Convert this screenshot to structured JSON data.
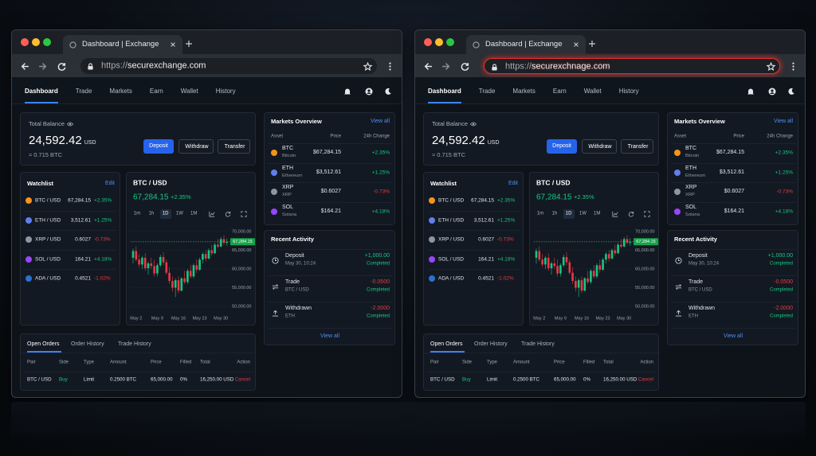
{
  "windows": [
    {
      "tab_title": "Dashboard | Exchange",
      "url_scheme": "https://",
      "url_host": "securexchange.com",
      "url_warning": false
    },
    {
      "tab_title": "Dashboard | Exchange",
      "url_scheme": "https://",
      "url_host": "securexchnage.com",
      "url_warning": true
    }
  ],
  "dashboard": {
    "nav": {
      "items": [
        "Dashboard",
        "Trade",
        "Markets",
        "Earn",
        "Wallet",
        "History"
      ],
      "active": 0
    },
    "balance": {
      "label": "Total Balance",
      "amount": "24,592.42",
      "currency": "USD",
      "btc": "≈ 0.715 BTC",
      "buttons": [
        "Deposit",
        "Withdraw",
        "Transfer"
      ]
    },
    "watchlist": {
      "title": "Watchlist",
      "edit": "Edit",
      "rows": [
        {
          "pair": "BTC / USD",
          "price": "67,284.15",
          "change": "+2.35%",
          "color": "#f7931a"
        },
        {
          "pair": "ETH / USD",
          "price": "3,512.61",
          "change": "+1.25%",
          "color": "#627eea"
        },
        {
          "pair": "XRP / USD",
          "price": "0.6027",
          "change": "-0.73%",
          "color": "#8a96a3"
        },
        {
          "pair": "SOL / USD",
          "price": "164.21",
          "change": "+4.18%",
          "color": "#9945ff"
        },
        {
          "pair": "ADA / USD",
          "price": "0.4521",
          "change": "-1.02%",
          "color": "#2a71d0"
        }
      ]
    },
    "chart": {
      "type": "candlestick",
      "title": "BTC / USD",
      "price": "67,284.15",
      "change": "+2.35%",
      "timeframes": [
        "1m",
        "1h",
        "1D",
        "1W",
        "1M"
      ],
      "active_timeframe": 2,
      "ylim": [
        48000,
        71000
      ],
      "yticks": [
        {
          "value": 50000,
          "label": "50,000.00"
        },
        {
          "value": 55000,
          "label": "55,000.00"
        },
        {
          "value": 60000,
          "label": "60,000.00"
        },
        {
          "value": 65000,
          "label": "65,000.00"
        },
        {
          "value": 70000,
          "label": "70,000.00"
        }
      ],
      "xticks": [
        "May 2",
        "May 9",
        "May 16",
        "May 23",
        "May 30"
      ],
      "up_color": "#16c784",
      "down_color": "#ea3943",
      "candles": [
        {
          "open": 63000,
          "high": 65500,
          "low": 61500,
          "close": 64800
        },
        {
          "open": 64800,
          "high": 66000,
          "low": 62000,
          "close": 62500
        },
        {
          "open": 62500,
          "high": 64000,
          "low": 60500,
          "close": 61200
        },
        {
          "open": 61200,
          "high": 63500,
          "low": 60000,
          "close": 63000
        },
        {
          "open": 63000,
          "high": 64200,
          "low": 59500,
          "close": 60200
        },
        {
          "open": 60200,
          "high": 62000,
          "low": 58500,
          "close": 61500
        },
        {
          "open": 61500,
          "high": 63000,
          "low": 60000,
          "close": 60800
        },
        {
          "open": 60800,
          "high": 62500,
          "low": 58000,
          "close": 58800
        },
        {
          "open": 58800,
          "high": 61500,
          "low": 58000,
          "close": 61000
        },
        {
          "open": 61000,
          "high": 63800,
          "low": 60500,
          "close": 63200
        },
        {
          "open": 63200,
          "high": 64500,
          "low": 61000,
          "close": 61800
        },
        {
          "open": 61800,
          "high": 62500,
          "low": 58500,
          "close": 59000
        },
        {
          "open": 59000,
          "high": 60500,
          "low": 56000,
          "close": 56800
        },
        {
          "open": 56800,
          "high": 58000,
          "low": 54000,
          "close": 55000
        },
        {
          "open": 55000,
          "high": 57500,
          "low": 52500,
          "close": 57000
        },
        {
          "open": 57000,
          "high": 58000,
          "low": 53500,
          "close": 54200
        },
        {
          "open": 54200,
          "high": 57800,
          "low": 54000,
          "close": 57500
        },
        {
          "open": 57500,
          "high": 59500,
          "low": 56000,
          "close": 56500
        },
        {
          "open": 56500,
          "high": 60000,
          "low": 56000,
          "close": 59500
        },
        {
          "open": 59500,
          "high": 61000,
          "low": 57500,
          "close": 58000
        },
        {
          "open": 58000,
          "high": 61500,
          "low": 57500,
          "close": 61000
        },
        {
          "open": 61000,
          "high": 62500,
          "low": 59000,
          "close": 59800
        },
        {
          "open": 59800,
          "high": 63000,
          "low": 59500,
          "close": 62500
        },
        {
          "open": 62500,
          "high": 64500,
          "low": 61500,
          "close": 64000
        },
        {
          "open": 64000,
          "high": 65000,
          "low": 62000,
          "close": 62800
        },
        {
          "open": 62800,
          "high": 65500,
          "low": 62500,
          "close": 65000
        },
        {
          "open": 65000,
          "high": 66500,
          "low": 63500,
          "close": 64200
        },
        {
          "open": 64200,
          "high": 67000,
          "low": 64000,
          "close": 66500
        },
        {
          "open": 66500,
          "high": 68000,
          "low": 65500,
          "close": 66000
        },
        {
          "open": 66000,
          "high": 68500,
          "low": 65800,
          "close": 68000
        },
        {
          "open": 68000,
          "high": 69000,
          "low": 66500,
          "close": 67000
        },
        {
          "open": 67000,
          "high": 68200,
          "low": 66200,
          "close": 67284.15
        }
      ]
    },
    "markets": {
      "title": "Markets Overview",
      "view_all": "View all",
      "columns": [
        "Asset",
        "Price",
        "24h Change"
      ],
      "rows": [
        {
          "symbol": "BTC",
          "name": "Bitcoin",
          "price": "$67,284.15",
          "change": "+2.35%",
          "color": "#f7931a"
        },
        {
          "symbol": "ETH",
          "name": "Ethereum",
          "price": "$3,512.61",
          "change": "+1.25%",
          "color": "#627eea"
        },
        {
          "symbol": "XRP",
          "name": "XRP",
          "price": "$0.6027",
          "change": "-0.73%",
          "color": "#8a96a3"
        },
        {
          "symbol": "SOL",
          "name": "Solana",
          "price": "$164.21",
          "change": "+4.18%",
          "color": "#9945ff"
        }
      ]
    },
    "activity": {
      "title": "Recent Activity",
      "view_all": "View all",
      "items": [
        {
          "type": "Deposit",
          "detail": "May 30, 10:24",
          "amount": "+1,000.00",
          "status": "Completed"
        },
        {
          "type": "Trade",
          "detail": "BTC / USD",
          "amount": "-0.0500",
          "status": "Completed"
        },
        {
          "type": "Withdrawn",
          "detail": "ETH",
          "amount": "-2.0000",
          "status": "Completed"
        }
      ]
    },
    "orders": {
      "tabs": [
        "Open Orders",
        "Order History",
        "Trade History"
      ],
      "active": 0,
      "columns": [
        "Pair",
        "Side",
        "Type",
        "Amount",
        "Price",
        "Filled",
        "Total",
        "Action"
      ],
      "rows": [
        [
          "BTC / USD",
          "Buy",
          "Limit",
          "0.2500 BTC",
          "65,000.00",
          "0%",
          "16,250.00 USD",
          "Cancel"
        ]
      ]
    }
  }
}
